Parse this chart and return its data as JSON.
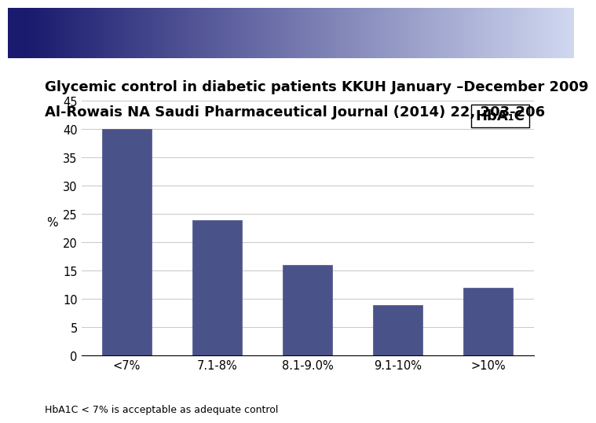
{
  "title_line1": "Glycemic control in diabetic patients KKUH January –December 2009",
  "title_line2": "Al-Rowais NA Saudi Pharmaceutical Journal (2014) 22, 203-206",
  "categories": [
    "<7%",
    "7.1-8%",
    "8.1-9.0%",
    "9.1-10%",
    ">10%"
  ],
  "values": [
    40,
    24,
    16,
    9,
    12
  ],
  "bar_color": "#4a5389",
  "ylabel": "%",
  "ylim": [
    0,
    45
  ],
  "yticks": [
    0,
    5,
    10,
    15,
    20,
    25,
    30,
    35,
    40,
    45
  ],
  "legend_label": "HbA₁C",
  "footnote": "HbA1C < 7% is acceptable as adequate control",
  "background_color": "#ffffff",
  "header_gradient_left": "#1a1a6e",
  "header_gradient_right": "#d0d8f0",
  "title_fontsize": 13,
  "axis_fontsize": 11,
  "tick_fontsize": 10.5,
  "legend_fontsize": 13
}
